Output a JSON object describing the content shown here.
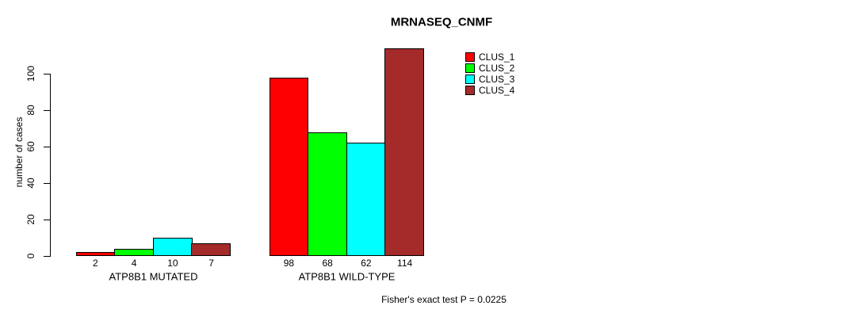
{
  "title": "MRNASEQ_CNMF",
  "caption": "Fisher's exact test P = 0.0225",
  "colors": {
    "background": "#FFFFFF",
    "axis": "#000000",
    "text": "#000000"
  },
  "chart_data": {
    "type": "bar",
    "title": "MRNASEQ_CNMF",
    "xlabel": "",
    "ylabel": "number of cases",
    "yticks": [
      0,
      20,
      40,
      60,
      80,
      100
    ],
    "ylim": [
      0,
      115
    ],
    "grid": false,
    "legend_position": "top-right-inside",
    "categories": [
      "ATP8B1 MUTATED",
      "ATP8B1 WILD-TYPE"
    ],
    "series": [
      {
        "name": "CLUS_1",
        "color": "#FF0000",
        "values": [
          2,
          98
        ]
      },
      {
        "name": "CLUS_2",
        "color": "#00FF00",
        "values": [
          4,
          68
        ]
      },
      {
        "name": "CLUS_3",
        "color": "#00FFFF",
        "values": [
          10,
          62
        ]
      },
      {
        "name": "CLUS_4",
        "color": "#A52A2A",
        "values": [
          7,
          114
        ]
      }
    ],
    "bar_value_labels": [
      [
        2,
        4,
        10,
        7
      ],
      [
        98,
        68,
        62,
        114
      ]
    ],
    "annotation": "Fisher's exact test P = 0.0225"
  }
}
